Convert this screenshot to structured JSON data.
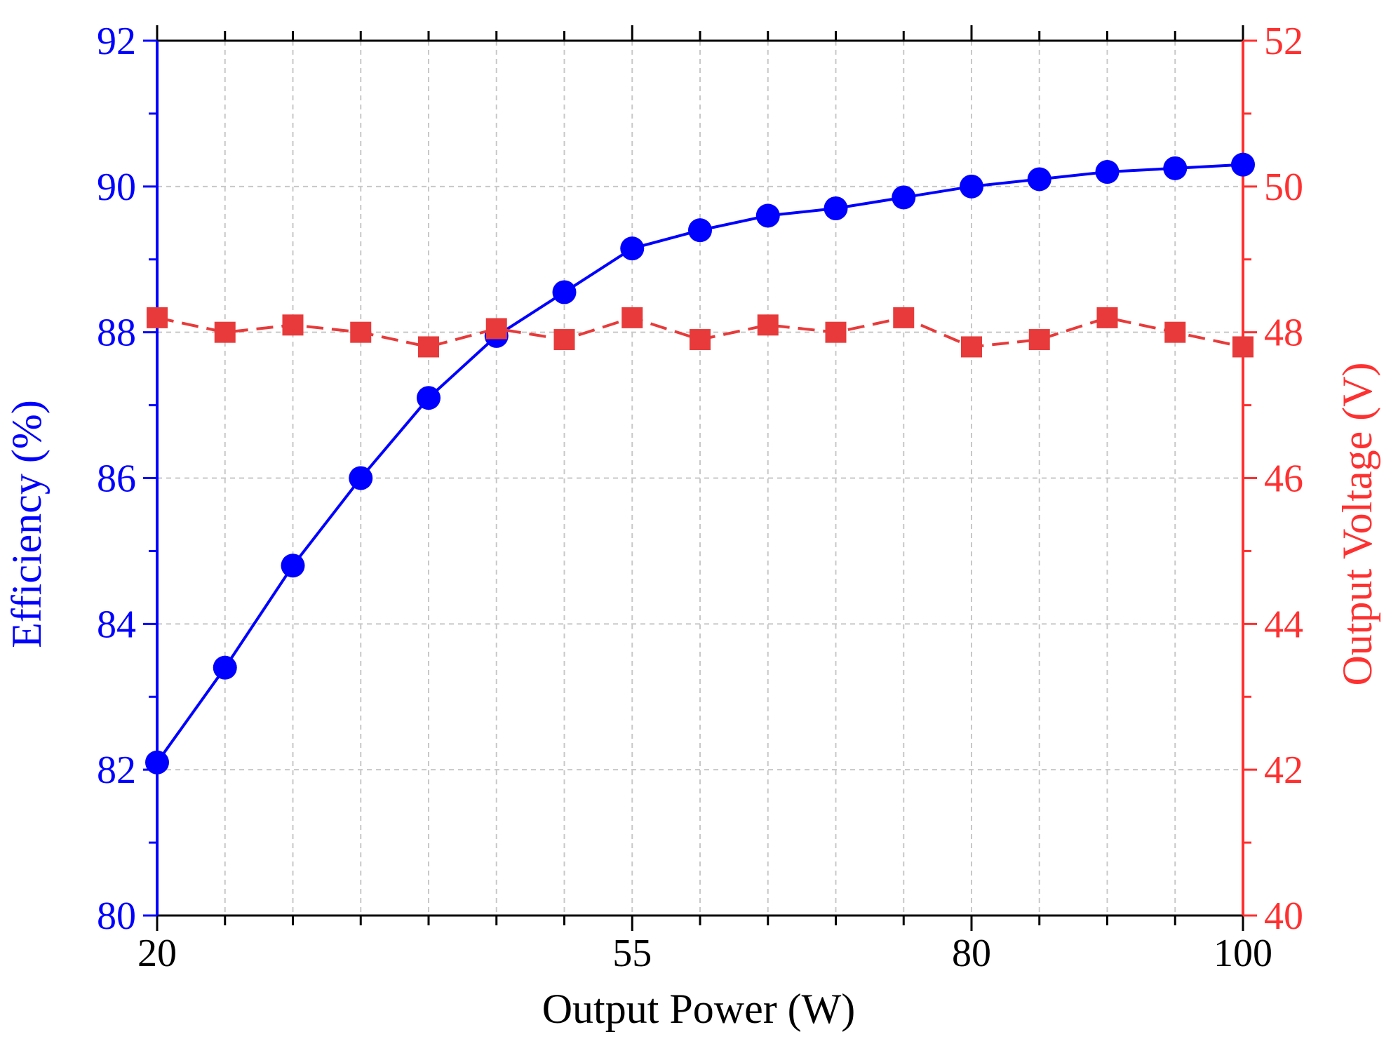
{
  "chart_data": {
    "type": "line",
    "x": [
      20,
      25,
      30,
      35,
      40,
      45,
      50,
      55,
      60,
      65,
      70,
      75,
      80,
      85,
      90,
      95,
      100
    ],
    "series": [
      {
        "name": "Efficiency",
        "axis": "left",
        "marker": "circle",
        "line_style": "solid",
        "color": "#0000ff",
        "values": [
          82.1,
          83.4,
          84.8,
          86.0,
          87.1,
          87.95,
          88.55,
          89.15,
          89.4,
          89.6,
          89.7,
          89.85,
          90.0,
          90.1,
          90.2,
          90.25,
          90.3
        ]
      },
      {
        "name": "Output Voltage",
        "axis": "right",
        "marker": "square",
        "line_style": "dashed",
        "color": "#e83a3a",
        "values": [
          48.2,
          48.0,
          48.1,
          48.0,
          47.8,
          48.05,
          47.9,
          48.2,
          47.9,
          48.1,
          48.0,
          48.2,
          47.8,
          47.9,
          48.2,
          48.0,
          47.8
        ]
      }
    ],
    "xlabel": "Output Power (W)",
    "ylabel_left": "Efficiency (%)",
    "ylabel_right": "Output Voltage (V)",
    "xlim": [
      20,
      100
    ],
    "ylim_left": [
      80,
      92
    ],
    "ylim_right": [
      40,
      52
    ],
    "x_tick_labels": [
      "20",
      "55",
      "80",
      "100"
    ],
    "x_tick_label_values": [
      20,
      55,
      80,
      100
    ],
    "x_minor_ticks": [
      25,
      30,
      35,
      40,
      45,
      50,
      55,
      60,
      65,
      70,
      75,
      80,
      85,
      90,
      95
    ],
    "y_left_ticks": [
      80,
      82,
      84,
      86,
      88,
      90,
      92
    ],
    "y_right_ticks": [
      40,
      42,
      44,
      46,
      48,
      50,
      52
    ],
    "grid": true,
    "colors": {
      "left_axis": "#0000ff",
      "right_axis": "#ff3030",
      "grid": "#c8c8c8",
      "frame": "#000000"
    }
  }
}
